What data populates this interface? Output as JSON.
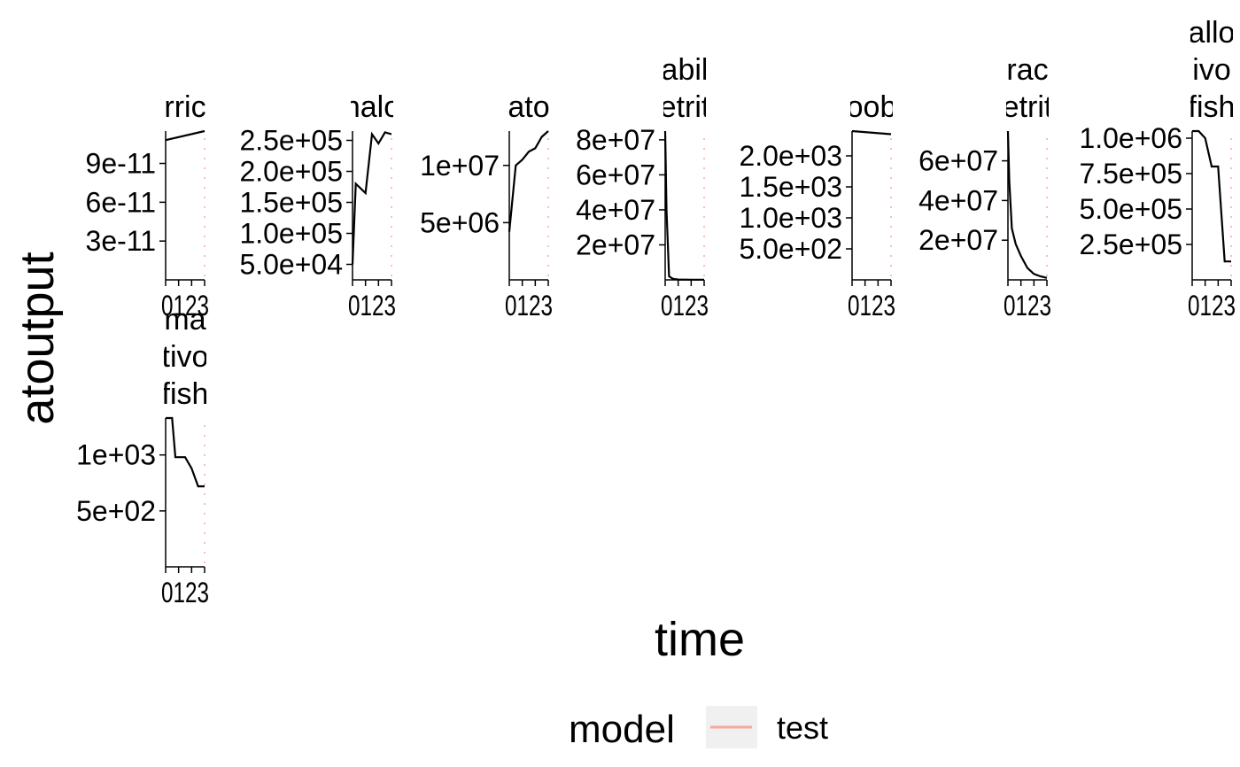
{
  "chart_data": {
    "type": "line",
    "xlabel": "time",
    "ylabel": "atoutput",
    "legend": {
      "title": "model",
      "entries": [
        {
          "label": "test",
          "color": "#F8A89E"
        }
      ],
      "placement": "bottom"
    },
    "line_color": "#000000",
    "reference_color": "#F8A89E",
    "x_ticks": [
      "0",
      "1",
      "2",
      "3"
    ],
    "x_tick_label_text": "0123",
    "xlim": [
      0,
      3
    ],
    "panels": [
      {
        "strip": [
          "rric"
        ],
        "ylim": [
          0,
          1.15e-10
        ],
        "yticks": [
          3e-11,
          6e-11,
          9e-11
        ],
        "ytick_labels": [
          "3e-11",
          "6e-11",
          "9e-11"
        ],
        "x": [
          0,
          3
        ],
        "y": [
          1.08e-10,
          1.15e-10
        ]
      },
      {
        "strip": [
          "nalo"
        ],
        "ylim": [
          25000,
          265000.0
        ],
        "yticks": [
          50000,
          100000,
          150000,
          200000,
          250000
        ],
        "ytick_labels": [
          "5.0e+04",
          "1.0e+05",
          "1.5e+05",
          "2.0e+05",
          "2.5e+05"
        ],
        "x": [
          0,
          0.25,
          1,
          1.5,
          2,
          2.5,
          3
        ],
        "y": [
          50000,
          180000.0,
          165000.0,
          260000.0,
          245000.0,
          263000.0,
          260000.0
        ]
      },
      {
        "strip": [
          "ato"
        ],
        "ylim": [
          0,
          13000000.0
        ],
        "yticks": [
          5000000,
          10000000
        ],
        "ytick_labels": [
          "5e+06",
          "1e+07"
        ],
        "x": [
          0,
          0.5,
          1,
          1.5,
          2,
          2.5,
          3
        ],
        "y": [
          4200000.0,
          10000000.0,
          10500000.0,
          11200000.0,
          11500000.0,
          12500000.0,
          13000000.0
        ]
      },
      {
        "strip": [
          "abil",
          "etrit"
        ],
        "ylim": [
          0,
          85000000.0
        ],
        "yticks": [
          20000000,
          40000000,
          60000000,
          80000000
        ],
        "ytick_labels": [
          "2e+07",
          "4e+07",
          "6e+07",
          "8e+07"
        ],
        "x": [
          0,
          0.1,
          0.3,
          0.6,
          1,
          2,
          3
        ],
        "y": [
          85000000.0,
          40000000.0,
          2000000.0,
          600000,
          200000,
          100000,
          100000
        ]
      },
      {
        "strip": [
          "oob"
        ],
        "ylim": [
          0,
          2400
        ],
        "yticks": [
          500,
          1000,
          1500,
          2000
        ],
        "ytick_labels": [
          "5.0e+02",
          "1.0e+03",
          "1.5e+03",
          "2.0e+03"
        ],
        "x": [
          0,
          3
        ],
        "y": [
          2400,
          2350
        ]
      },
      {
        "strip": [
          "rac",
          "etrit"
        ],
        "ylim": [
          0,
          75000000.0
        ],
        "yticks": [
          20000000,
          40000000,
          60000000
        ],
        "ytick_labels": [
          "2e+07",
          "4e+07",
          "6e+07"
        ],
        "x": [
          0,
          0.1,
          0.3,
          0.6,
          1,
          1.5,
          2,
          2.5,
          3
        ],
        "y": [
          75000000.0,
          50000000.0,
          26000000.0,
          18000000.0,
          12000000.0,
          6000000.0,
          3000000.0,
          1800000.0,
          1000000.0
        ]
      },
      {
        "strip": [
          "allo",
          "ivo",
          "fish"
        ],
        "ylim": [
          0,
          1050000.0
        ],
        "yticks": [
          250000,
          500000,
          750000,
          1000000
        ],
        "ytick_labels": [
          "2.5e+05",
          "5.0e+05",
          "7.5e+05",
          "1.0e+06"
        ],
        "x": [
          0,
          0.5,
          1,
          1.5,
          2,
          2.5,
          3
        ],
        "y": [
          1050000.0,
          1050000.0,
          1000000.0,
          800000.0,
          800000.0,
          130000.0,
          130000.0
        ]
      },
      {
        "strip": [
          "ma",
          "tivo",
          "fish"
        ],
        "ylim": [
          0,
          1330
        ],
        "yticks": [
          500,
          1000
        ],
        "ytick_labels": [
          "5e+02",
          "1e+03"
        ],
        "x": [
          0,
          0.5,
          0.75,
          1.5,
          2,
          2.5,
          3
        ],
        "y": [
          1330,
          1330,
          980,
          980,
          880,
          720,
          720
        ]
      }
    ]
  }
}
